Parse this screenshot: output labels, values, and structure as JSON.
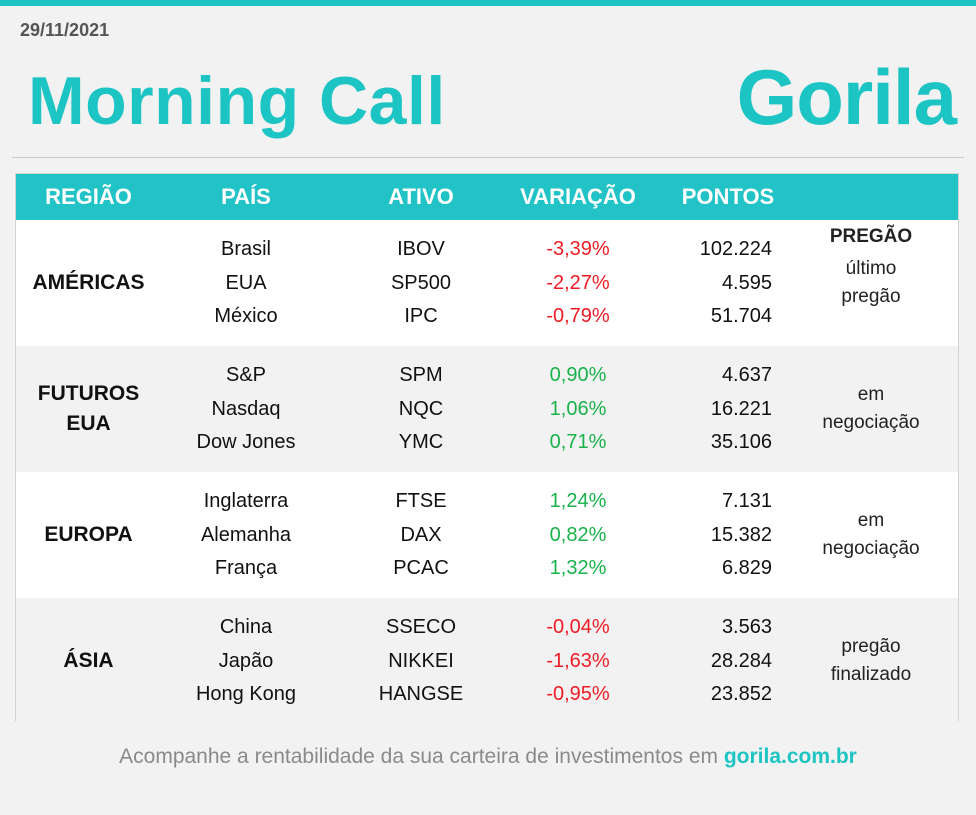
{
  "header": {
    "date": "29/11/2021",
    "title": "Morning Call",
    "logo_text": "Gorila"
  },
  "colors": {
    "accent": "#1cc4c4",
    "negative": "#ee1c25",
    "positive": "#19b24b"
  },
  "table": {
    "columns": [
      "REGIÃO",
      "PAÍS",
      "ATIVO",
      "VARIAÇÃO",
      "PONTOS",
      "PREGÃO"
    ],
    "sections": [
      {
        "region_lines": [
          "AMÉRICAS"
        ],
        "pregao_lines": [
          "último",
          "pregão"
        ],
        "rows": [
          {
            "pais": "Brasil",
            "ativo": "IBOV",
            "variacao": "-3,39%",
            "pontos": "102.224"
          },
          {
            "pais": "EUA",
            "ativo": "SP500",
            "variacao": "-2,27%",
            "pontos": "4.595"
          },
          {
            "pais": "México",
            "ativo": "IPC",
            "variacao": "-0,79%",
            "pontos": "51.704"
          }
        ]
      },
      {
        "region_lines": [
          "FUTUROS",
          "EUA"
        ],
        "pregao_lines": [
          "em",
          "negociação"
        ],
        "rows": [
          {
            "pais": "S&P",
            "ativo": "SPM",
            "variacao": "0,90%",
            "pontos": "4.637"
          },
          {
            "pais": "Nasdaq",
            "ativo": "NQC",
            "variacao": "1,06%",
            "pontos": "16.221"
          },
          {
            "pais": "Dow Jones",
            "ativo": "YMC",
            "variacao": "0,71%",
            "pontos": "35.106"
          }
        ]
      },
      {
        "region_lines": [
          "EUROPA"
        ],
        "pregao_lines": [
          "em",
          "negociação"
        ],
        "rows": [
          {
            "pais": "Inglaterra",
            "ativo": "FTSE",
            "variacao": "1,24%",
            "pontos": "7.131"
          },
          {
            "pais": "Alemanha",
            "ativo": "DAX",
            "variacao": "0,82%",
            "pontos": "15.382"
          },
          {
            "pais": "França",
            "ativo": "PCAC",
            "variacao": "1,32%",
            "pontos": "6.829"
          }
        ]
      },
      {
        "region_lines": [
          "ÁSIA"
        ],
        "pregao_lines": [
          "pregão",
          "finalizado"
        ],
        "rows": [
          {
            "pais": "China",
            "ativo": "SSECO",
            "variacao": "-0,04%",
            "pontos": "3.563"
          },
          {
            "pais": "Japão",
            "ativo": "NIKKEI",
            "variacao": "-1,63%",
            "pontos": "28.284"
          },
          {
            "pais": "Hong Kong",
            "ativo": "HANGSE",
            "variacao": "-0,95%",
            "pontos": "23.852"
          }
        ]
      }
    ]
  },
  "footer": {
    "text": "Acompanhe a rentabilidade da sua carteira de investimentos em ",
    "link": "gorila.com.br"
  }
}
